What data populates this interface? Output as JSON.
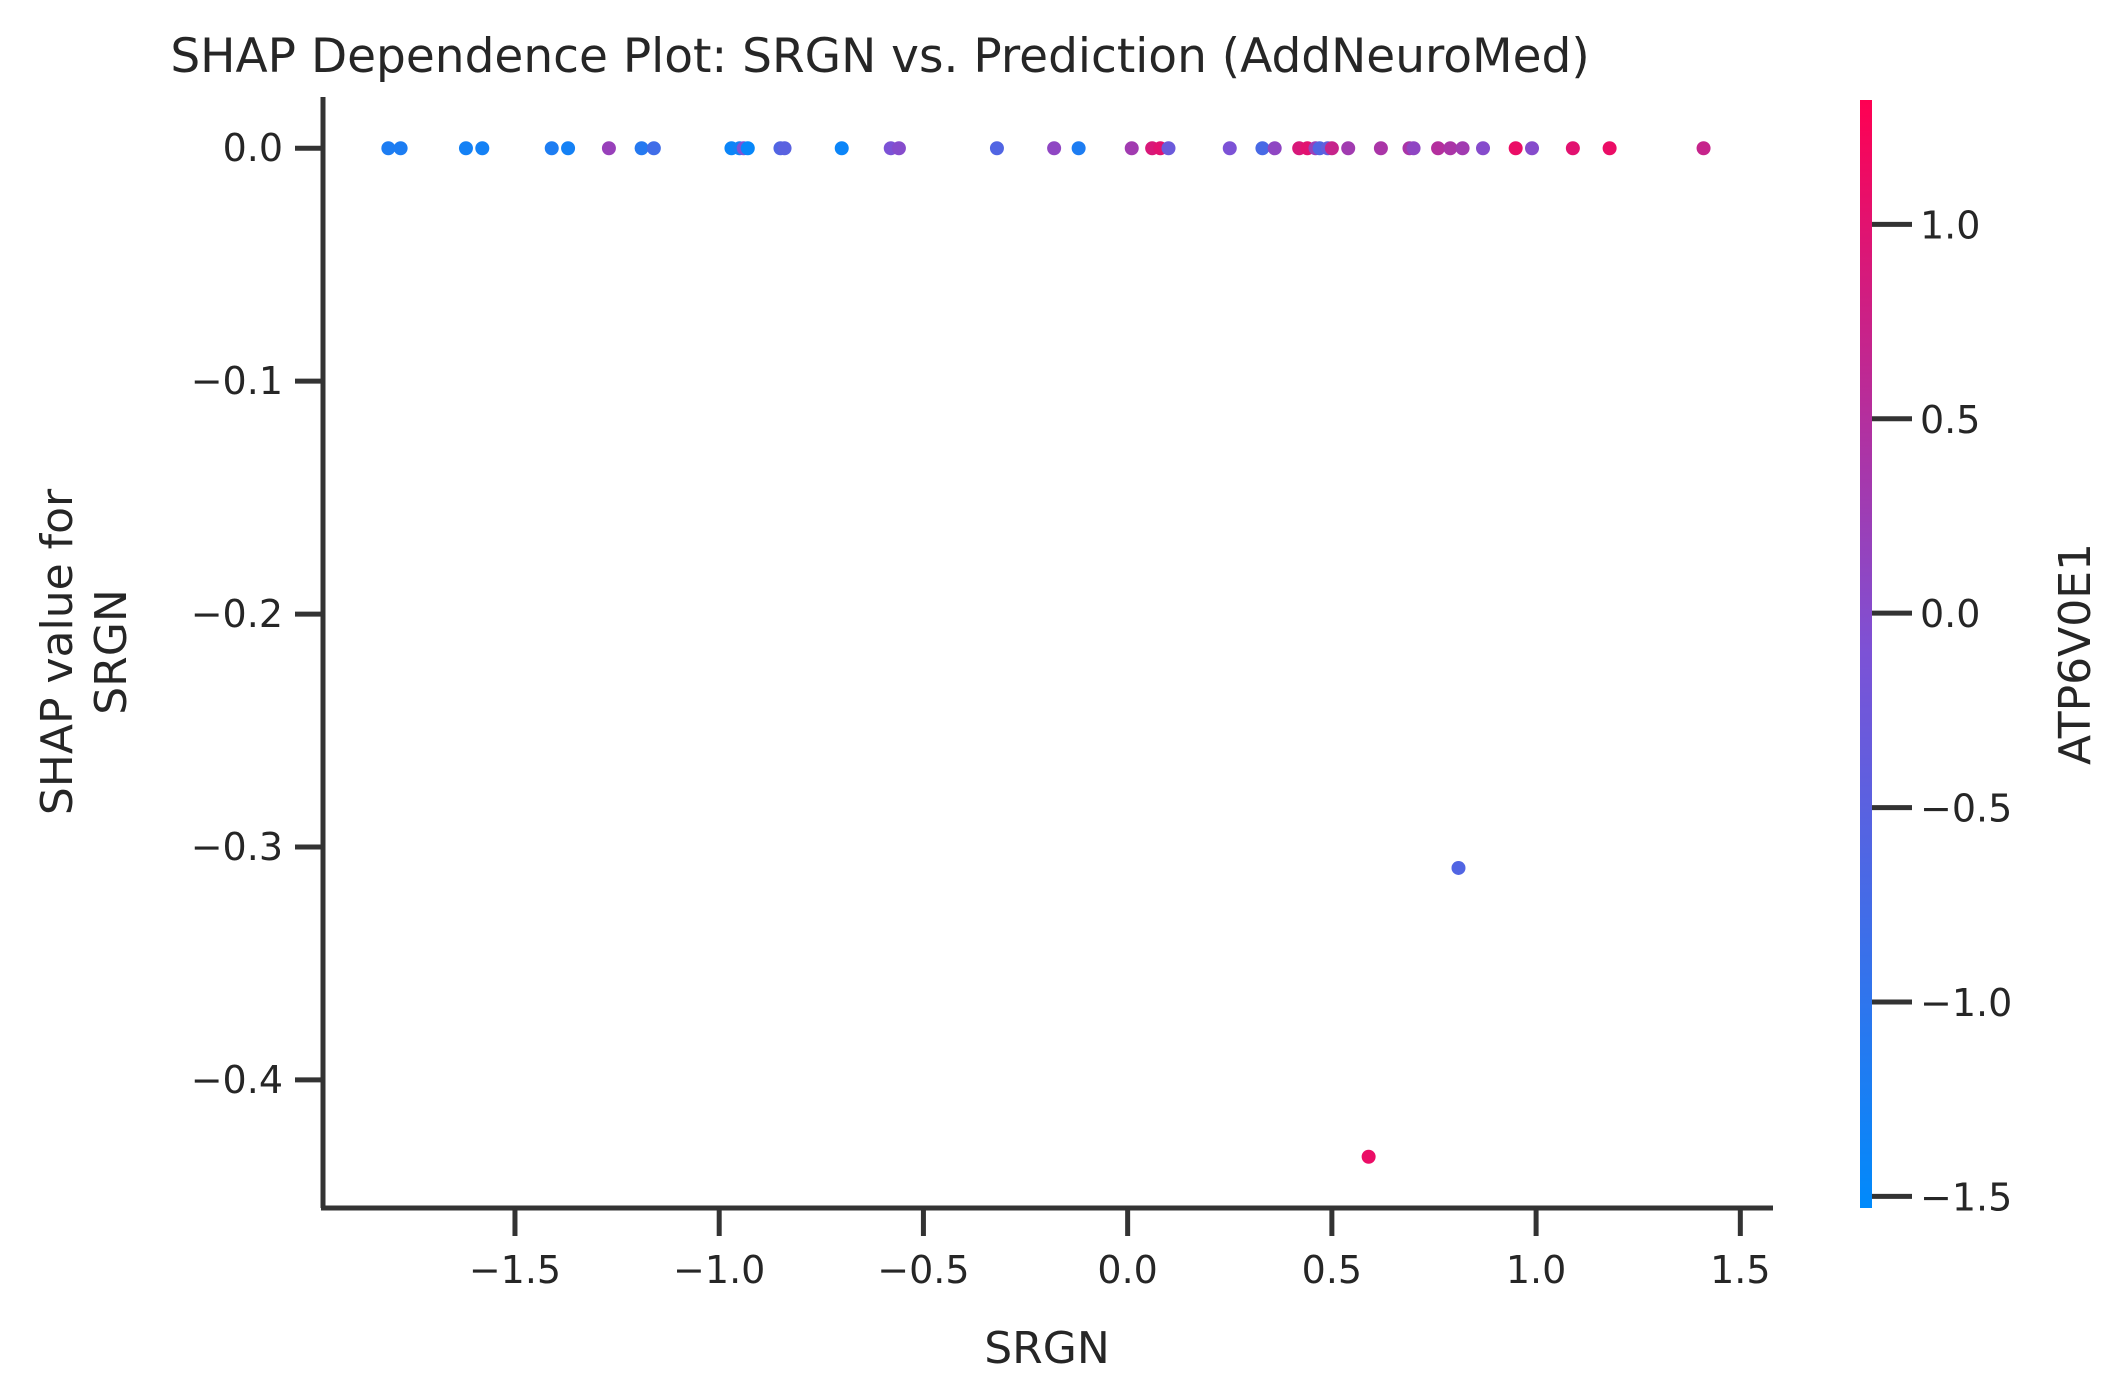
{
  "chart_data": {
    "type": "scatter",
    "title": "SHAP Dependence Plot: SRGN vs. Prediction (AddNeuroMed)",
    "xlabel": "SRGN",
    "ylabel_lines": [
      "SHAP value for",
      "SRGN"
    ],
    "xlim": [
      -1.97,
      1.58
    ],
    "ylim": [
      -0.455,
      0.022
    ],
    "xticks": [
      -1.5,
      -1.0,
      -0.5,
      0.0,
      0.5,
      1.0,
      1.5
    ],
    "xtick_labels": [
      "−1.5",
      "−1.0",
      "−0.5",
      "0.0",
      "0.5",
      "1.0",
      "1.5"
    ],
    "yticks": [
      0.0,
      -0.1,
      -0.2,
      -0.3,
      -0.4
    ],
    "ytick_labels": [
      "0.0",
      "−0.1",
      "−0.2",
      "−0.3",
      "−0.4"
    ],
    "colorbar": {
      "label": "ATP6V0E1",
      "range": [
        -1.53,
        1.32
      ],
      "ticks": [
        1.0,
        0.5,
        0.0,
        -0.5,
        -1.0,
        -1.5
      ],
      "tick_labels": [
        "1.0",
        "0.5",
        "0.0",
        "−0.5",
        "−1.0",
        "−1.5"
      ],
      "colors": [
        "#008afb",
        "#7c52d6",
        "#ff0052"
      ]
    },
    "grid": false,
    "points": [
      {
        "x": -1.81,
        "y": 0.0,
        "c": -1.2
      },
      {
        "x": -1.78,
        "y": 0.0,
        "c": -1.2
      },
      {
        "x": -1.62,
        "y": 0.0,
        "c": -1.3
      },
      {
        "x": -1.58,
        "y": 0.0,
        "c": -1.3
      },
      {
        "x": -1.41,
        "y": 0.0,
        "c": -1.2
      },
      {
        "x": -1.37,
        "y": 0.0,
        "c": -1.3
      },
      {
        "x": -1.27,
        "y": 0.0,
        "c": 0.2
      },
      {
        "x": -1.19,
        "y": 0.0,
        "c": -1.1
      },
      {
        "x": -1.16,
        "y": 0.0,
        "c": -0.8
      },
      {
        "x": -0.97,
        "y": 0.0,
        "c": -1.4
      },
      {
        "x": -0.95,
        "y": 0.0,
        "c": -1.3
      },
      {
        "x": -0.94,
        "y": 0.0,
        "c": -0.1
      },
      {
        "x": -0.93,
        "y": 0.0,
        "c": -1.45
      },
      {
        "x": -0.85,
        "y": 0.0,
        "c": -0.6
      },
      {
        "x": -0.84,
        "y": 0.0,
        "c": -0.5
      },
      {
        "x": -0.7,
        "y": 0.0,
        "c": -1.4
      },
      {
        "x": -0.58,
        "y": 0.0,
        "c": -0.1
      },
      {
        "x": -0.56,
        "y": 0.0,
        "c": 0.0
      },
      {
        "x": -0.32,
        "y": 0.0,
        "c": -0.6
      },
      {
        "x": -0.18,
        "y": 0.0,
        "c": 0.1
      },
      {
        "x": -0.12,
        "y": 0.0,
        "c": -1.2
      },
      {
        "x": 0.01,
        "y": 0.0,
        "c": 0.3
      },
      {
        "x": 0.06,
        "y": 0.0,
        "c": 0.9
      },
      {
        "x": 0.08,
        "y": 0.0,
        "c": 1.0
      },
      {
        "x": 0.1,
        "y": 0.0,
        "c": -0.3
      },
      {
        "x": 0.25,
        "y": 0.0,
        "c": -0.1
      },
      {
        "x": 0.33,
        "y": 0.0,
        "c": -0.7
      },
      {
        "x": 0.36,
        "y": 0.0,
        "c": 0.1
      },
      {
        "x": 0.42,
        "y": 0.0,
        "c": 0.9
      },
      {
        "x": 0.44,
        "y": 0.0,
        "c": 1.0
      },
      {
        "x": 0.46,
        "y": 0.0,
        "c": 0.2
      },
      {
        "x": 0.47,
        "y": 0.0,
        "c": -0.6
      },
      {
        "x": 0.49,
        "y": 0.0,
        "c": -0.4
      },
      {
        "x": 0.5,
        "y": 0.0,
        "c": 0.7
      },
      {
        "x": 0.54,
        "y": 0.0,
        "c": 0.3
      },
      {
        "x": 0.62,
        "y": 0.0,
        "c": 0.4
      },
      {
        "x": 0.69,
        "y": 0.0,
        "c": 0.4
      },
      {
        "x": 0.7,
        "y": 0.0,
        "c": 0.1
      },
      {
        "x": 0.76,
        "y": 0.0,
        "c": 0.5
      },
      {
        "x": 0.79,
        "y": 0.0,
        "c": 0.4
      },
      {
        "x": 0.82,
        "y": 0.0,
        "c": 0.3
      },
      {
        "x": 0.87,
        "y": 0.0,
        "c": 0.0
      },
      {
        "x": 0.95,
        "y": 0.0,
        "c": 1.1
      },
      {
        "x": 0.99,
        "y": 0.0,
        "c": 0.0
      },
      {
        "x": 1.09,
        "y": 0.0,
        "c": 1.0
      },
      {
        "x": 1.18,
        "y": 0.0,
        "c": 1.1
      },
      {
        "x": 1.41,
        "y": 0.0,
        "c": 0.7
      },
      {
        "x": 0.81,
        "y": -0.309,
        "c": -0.6
      },
      {
        "x": 0.59,
        "y": -0.433,
        "c": 1.1
      }
    ]
  }
}
